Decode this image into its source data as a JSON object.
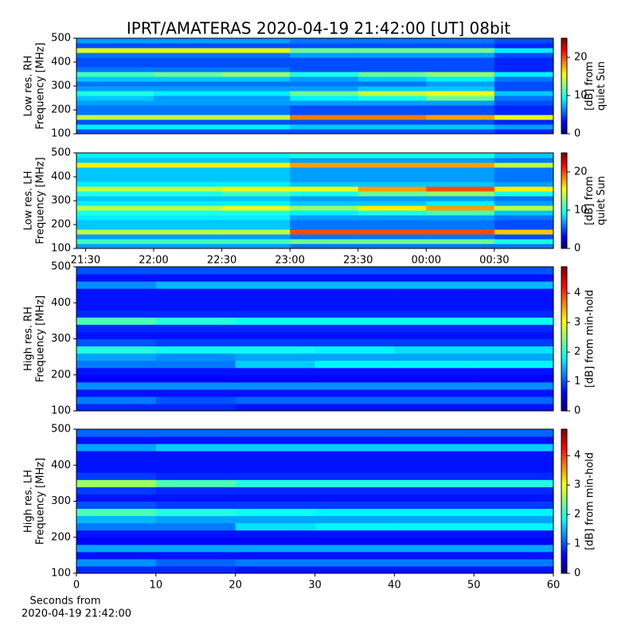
{
  "title": "IPRT/AMATERAS 2020-04-19 21:42:00 [UT]   08bit",
  "chart_data": [
    {
      "type": "heatmap",
      "colormap": "jet",
      "ylabel": [
        "Low res. RH",
        "Frequency [MHz]"
      ],
      "zlabel": [
        "[dB] from",
        "quiet Sun"
      ],
      "xlim": [
        "21:26",
        "00:56"
      ],
      "x_bins": [
        "21:26",
        "22:00",
        "22:30",
        "23:00",
        "23:30",
        "00:00",
        "00:30",
        "00:56"
      ],
      "ylim": [
        100,
        500
      ],
      "yticks": [
        100,
        200,
        300,
        400,
        500
      ],
      "y_bins": [
        100,
        120,
        140,
        160,
        180,
        200,
        220,
        240,
        260,
        280,
        300,
        320,
        340,
        360,
        380,
        400,
        420,
        440,
        460,
        480,
        500
      ],
      "zlim": [
        0,
        25
      ],
      "zticks": [
        0,
        10,
        20
      ],
      "z": [
        [
          5,
          5,
          5,
          5,
          5,
          5,
          4
        ],
        [
          9,
          9,
          9,
          8,
          8,
          8,
          7
        ],
        [
          5,
          5,
          5,
          5,
          5,
          5,
          4
        ],
        [
          14,
          14,
          14,
          19,
          19,
          18,
          15
        ],
        [
          6,
          6,
          6,
          5,
          5,
          5,
          4
        ],
        [
          6,
          6,
          6,
          5,
          5,
          5,
          4
        ],
        [
          7,
          7,
          7,
          7,
          7,
          7,
          5
        ],
        [
          8,
          7,
          7,
          9,
          10,
          12,
          6
        ],
        [
          10,
          9,
          9,
          12,
          14,
          15,
          8
        ],
        [
          7,
          7,
          7,
          7,
          8,
          8,
          5
        ],
        [
          6,
          6,
          6,
          6,
          6,
          7,
          5
        ],
        [
          8,
          8,
          8,
          7,
          8,
          9,
          6
        ],
        [
          11,
          12,
          13,
          10,
          12,
          13,
          9
        ],
        [
          6,
          6,
          6,
          5,
          5,
          5,
          4
        ],
        [
          5,
          5,
          5,
          5,
          5,
          5,
          4
        ],
        [
          5,
          5,
          5,
          5,
          5,
          5,
          4
        ],
        [
          6,
          6,
          6,
          7,
          7,
          7,
          5
        ],
        [
          15,
          15,
          15,
          12,
          12,
          12,
          9
        ],
        [
          5,
          5,
          5,
          5,
          5,
          5,
          4
        ],
        [
          7,
          7,
          7,
          6,
          6,
          6,
          5
        ]
      ]
    },
    {
      "type": "heatmap",
      "colormap": "jet",
      "ylabel": [
        "Low res. LH",
        "Frequency [MHz]"
      ],
      "zlabel": [
        "[dB] from",
        "quiet Sun"
      ],
      "xlim": [
        "21:26",
        "00:56"
      ],
      "x_bins": [
        "21:26",
        "22:00",
        "22:30",
        "23:00",
        "23:30",
        "00:00",
        "00:30",
        "00:56"
      ],
      "xticks": [
        "21:30",
        "22:00",
        "22:30",
        "23:00",
        "23:30",
        "00:00",
        "00:30"
      ],
      "ylim": [
        100,
        500
      ],
      "yticks": [
        100,
        200,
        300,
        400,
        500
      ],
      "y_bins": [
        100,
        120,
        140,
        160,
        180,
        200,
        220,
        240,
        260,
        280,
        300,
        320,
        340,
        360,
        380,
        400,
        420,
        440,
        460,
        480,
        500
      ],
      "zlim": [
        0,
        25
      ],
      "zticks": [
        0,
        10,
        20
      ],
      "z": [
        [
          7,
          7,
          7,
          6,
          6,
          6,
          6
        ],
        [
          11,
          11,
          11,
          12,
          12,
          12,
          10
        ],
        [
          7,
          7,
          7,
          6,
          6,
          6,
          5
        ],
        [
          14,
          14,
          14,
          20,
          20,
          20,
          17
        ],
        [
          8,
          8,
          8,
          6,
          6,
          6,
          5
        ],
        [
          8,
          8,
          8,
          6,
          6,
          6,
          5
        ],
        [
          9,
          9,
          9,
          7,
          7,
          7,
          6
        ],
        [
          10,
          10,
          10,
          9,
          10,
          11,
          8
        ],
        [
          14,
          14,
          15,
          13,
          16,
          18,
          14
        ],
        [
          9,
          9,
          9,
          8,
          8,
          9,
          7
        ],
        [
          8,
          8,
          8,
          7,
          7,
          7,
          6
        ],
        [
          10,
          10,
          11,
          10,
          12,
          13,
          10
        ],
        [
          14,
          14,
          15,
          15,
          18,
          20,
          16
        ],
        [
          9,
          9,
          9,
          8,
          8,
          8,
          7
        ],
        [
          8,
          8,
          8,
          7,
          7,
          7,
          6
        ],
        [
          8,
          8,
          8,
          7,
          7,
          7,
          6
        ],
        [
          8,
          8,
          8,
          7,
          7,
          7,
          6
        ],
        [
          16,
          16,
          16,
          18,
          18,
          18,
          14
        ],
        [
          8,
          8,
          8,
          7,
          7,
          7,
          6
        ],
        [
          9,
          9,
          9,
          10,
          10,
          10,
          8
        ]
      ]
    },
    {
      "type": "heatmap",
      "colormap": "jet",
      "ylabel": [
        "High res. RH",
        "Frequency [MHz]"
      ],
      "zlabel": [
        "[dB] from min-hold"
      ],
      "xlim": [
        0,
        60
      ],
      "x_bins": [
        0,
        10,
        20,
        30,
        40,
        50,
        60
      ],
      "ylim": [
        100,
        500
      ],
      "yticks": [
        100,
        200,
        300,
        400,
        500
      ],
      "y_bins": [
        100,
        120,
        140,
        160,
        180,
        200,
        220,
        240,
        260,
        280,
        300,
        320,
        340,
        360,
        380,
        400,
        420,
        440,
        460,
        480,
        500
      ],
      "zlim": [
        0,
        4.9
      ],
      "zticks": [
        0,
        1,
        2,
        3,
        4
      ],
      "z": [
        [
          0.8,
          0.8,
          0.7,
          0.7,
          0.7,
          0.7
        ],
        [
          1.2,
          1.0,
          1.1,
          1.1,
          1.1,
          1.1
        ],
        [
          0.7,
          0.7,
          0.7,
          0.7,
          0.7,
          0.7
        ],
        [
          1.3,
          1.3,
          1.3,
          1.3,
          1.3,
          1.3
        ],
        [
          0.6,
          0.6,
          0.6,
          0.6,
          0.6,
          0.6
        ],
        [
          0.7,
          0.7,
          0.7,
          0.7,
          0.7,
          0.7
        ],
        [
          1.2,
          1.2,
          1.6,
          1.8,
          1.8,
          1.8
        ],
        [
          1.4,
          1.3,
          1.4,
          1.4,
          1.4,
          1.4
        ],
        [
          2.0,
          1.9,
          1.9,
          1.8,
          1.7,
          1.7
        ],
        [
          1.0,
          0.9,
          0.9,
          0.9,
          0.9,
          0.9
        ],
        [
          0.7,
          0.7,
          0.7,
          0.7,
          0.7,
          0.7
        ],
        [
          0.8,
          0.8,
          0.8,
          0.8,
          0.8,
          0.8
        ],
        [
          2.2,
          2.0,
          1.9,
          1.9,
          1.9,
          1.9
        ],
        [
          0.8,
          0.8,
          0.8,
          0.8,
          0.8,
          0.8
        ],
        [
          0.7,
          0.7,
          0.7,
          0.7,
          0.7,
          0.7
        ],
        [
          0.7,
          0.7,
          0.7,
          0.7,
          0.7,
          0.7
        ],
        [
          0.7,
          0.7,
          0.7,
          0.7,
          0.7,
          0.7
        ],
        [
          1.3,
          1.5,
          1.5,
          1.5,
          1.5,
          1.5
        ],
        [
          0.7,
          0.7,
          0.7,
          0.7,
          0.7,
          0.7
        ],
        [
          1.0,
          1.0,
          1.0,
          1.0,
          1.0,
          1.0
        ]
      ]
    },
    {
      "type": "heatmap",
      "colormap": "jet",
      "ylabel": [
        "High res. LH",
        "Frequency [MHz]"
      ],
      "zlabel": [
        "[dB] from min-hold"
      ],
      "xlabel": [
        "Seconds from",
        "2020-04-19 21:42:00"
      ],
      "xlim": [
        0,
        60
      ],
      "x_bins": [
        0,
        10,
        20,
        30,
        40,
        50,
        60
      ],
      "xticks": [
        0,
        10,
        20,
        30,
        40,
        50,
        60
      ],
      "ylim": [
        100,
        500
      ],
      "yticks": [
        100,
        200,
        300,
        400,
        500
      ],
      "y_bins": [
        100,
        120,
        140,
        160,
        180,
        200,
        220,
        240,
        260,
        280,
        300,
        320,
        340,
        360,
        380,
        400,
        420,
        440,
        460,
        480,
        500
      ],
      "zlim": [
        0,
        4.9
      ],
      "zticks": [
        0,
        1,
        2,
        3,
        4
      ],
      "z": [
        [
          0.8,
          0.8,
          0.7,
          0.7,
          0.7,
          0.7
        ],
        [
          1.3,
          1.1,
          1.2,
          1.2,
          1.2,
          1.2
        ],
        [
          0.7,
          0.7,
          0.7,
          0.7,
          0.7,
          0.7
        ],
        [
          1.4,
          1.4,
          1.4,
          1.4,
          1.4,
          1.4
        ],
        [
          0.6,
          0.6,
          0.6,
          0.6,
          0.6,
          0.6
        ],
        [
          0.7,
          0.7,
          0.7,
          0.7,
          0.7,
          0.7
        ],
        [
          1.2,
          1.2,
          1.7,
          1.8,
          1.8,
          1.8
        ],
        [
          1.5,
          1.4,
          1.4,
          1.4,
          1.4,
          1.4
        ],
        [
          2.2,
          2.0,
          1.9,
          1.8,
          1.8,
          1.8
        ],
        [
          1.0,
          0.9,
          0.9,
          0.9,
          0.9,
          0.9
        ],
        [
          0.7,
          0.7,
          0.7,
          0.7,
          0.7,
          0.7
        ],
        [
          0.9,
          0.8,
          0.8,
          0.8,
          0.8,
          0.8
        ],
        [
          2.6,
          2.2,
          2.0,
          2.0,
          2.0,
          2.0
        ],
        [
          0.9,
          0.8,
          0.8,
          0.8,
          0.8,
          0.8
        ],
        [
          0.7,
          0.7,
          0.7,
          0.7,
          0.7,
          0.7
        ],
        [
          0.7,
          0.7,
          0.7,
          0.7,
          0.7,
          0.7
        ],
        [
          0.7,
          0.7,
          0.7,
          0.7,
          0.7,
          0.7
        ],
        [
          1.4,
          1.6,
          1.6,
          1.6,
          1.6,
          1.6
        ],
        [
          0.7,
          0.7,
          0.7,
          0.7,
          0.7,
          0.7
        ],
        [
          1.1,
          1.1,
          1.1,
          1.1,
          1.1,
          1.1
        ]
      ]
    }
  ]
}
